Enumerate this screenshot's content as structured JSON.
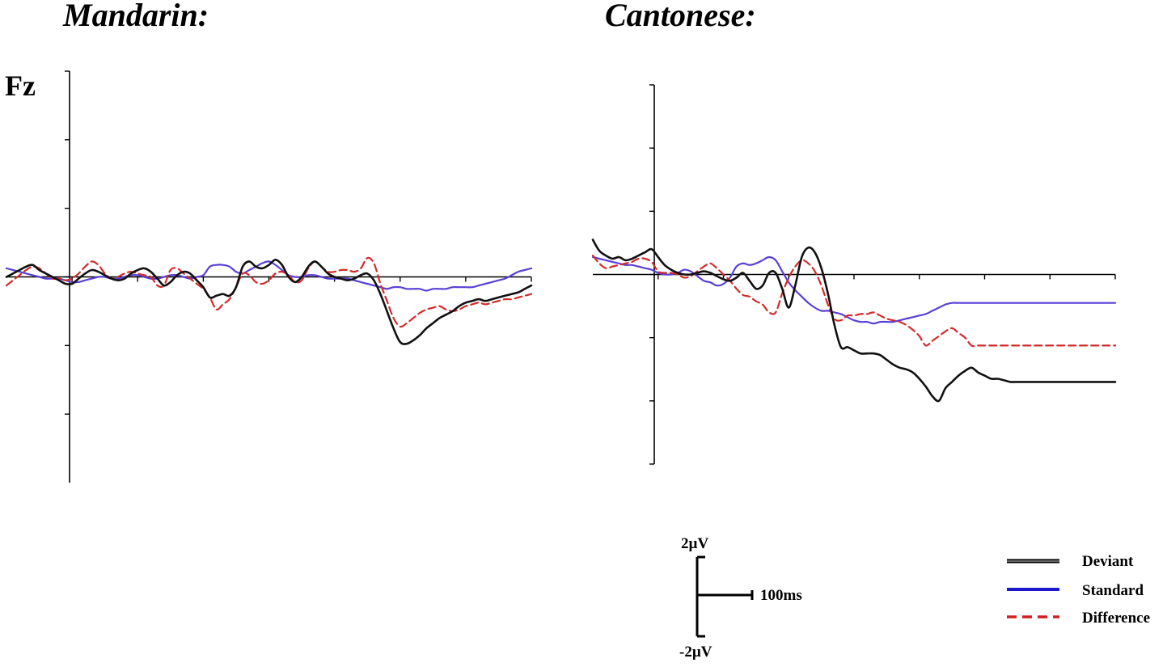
{
  "electrode_label": "Fz",
  "scale_bar": {
    "amplitude_top": "2µV",
    "amplitude_bottom": "-2µV",
    "time": "100ms"
  },
  "legend": [
    {
      "label": "Deviant",
      "color": "#000000",
      "style": "solid"
    },
    {
      "label": "Standard",
      "color": "#1a1acc",
      "style": "solid"
    },
    {
      "label": "Difference",
      "color": "#d02020",
      "style": "dashed"
    }
  ],
  "colors": {
    "deviant": "#111111",
    "standard": "#5a3fd6",
    "difference": "#d42a2a"
  },
  "chart_data": [
    {
      "type": "line",
      "title": "Mandarin:",
      "xlabel": "",
      "ylabel": "",
      "x_unit": "ms",
      "y_unit": "µV",
      "xlim": [
        -100,
        700
      ],
      "ylim": [
        -6,
        6
      ],
      "y_ticks": [
        -4,
        -2,
        0,
        2,
        4,
        6
      ],
      "x_ticks": [
        0,
        100,
        200,
        300,
        400,
        500,
        600,
        700
      ],
      "grid": false,
      "series": [
        {
          "name": "Deviant",
          "key": "deviant",
          "dashed": false,
          "x": [
            -100,
            -90,
            -80,
            -70,
            -60,
            -50,
            -40,
            -30,
            -20,
            -10,
            0,
            10,
            20,
            30,
            40,
            50,
            60,
            70,
            80,
            90,
            100,
            110,
            120,
            130,
            140,
            150,
            160,
            170,
            180,
            190,
            200,
            210,
            220,
            230,
            240,
            250,
            260,
            270,
            280,
            290,
            300,
            310,
            320,
            330,
            340,
            350,
            360,
            370,
            380,
            390,
            400,
            410,
            420,
            430,
            440,
            450,
            460,
            470,
            480,
            490,
            500,
            510,
            520,
            530,
            540,
            550,
            560,
            570,
            580,
            590,
            600,
            610,
            620,
            630,
            640,
            650,
            660,
            670,
            680,
            690,
            700
          ],
          "y": [
            0,
            0.1,
            0.2,
            0.3,
            0.35,
            0.2,
            0.1,
            0,
            -0.1,
            -0.2,
            -0.2,
            -0.05,
            0.1,
            0.2,
            0.15,
            0.05,
            -0.05,
            -0.1,
            -0.05,
            0.1,
            0.2,
            0.25,
            0.15,
            -0.05,
            -0.25,
            -0.15,
            0.05,
            0.15,
            0.1,
            -0.1,
            -0.3,
            -0.6,
            -0.55,
            -0.5,
            -0.55,
            -0.3,
            0.3,
            0.45,
            0.3,
            0.25,
            0.35,
            0.5,
            0.35,
            0,
            -0.15,
            0,
            0.3,
            0.45,
            0.3,
            0.1,
            0,
            -0.05,
            -0.1,
            -0.05,
            0.05,
            0.1,
            -0.1,
            -0.5,
            -1,
            -1.5,
            -1.9,
            -1.95,
            -1.85,
            -1.7,
            -1.5,
            -1.35,
            -1.2,
            -1.1,
            -1.0,
            -0.85,
            -0.75,
            -0.7,
            -0.65,
            -0.7,
            -0.65,
            -0.6,
            -0.55,
            -0.5,
            -0.45,
            -0.35,
            -0.25
          ]
        },
        {
          "name": "Standard",
          "key": "standard",
          "dashed": false,
          "x": [
            -100,
            -90,
            -80,
            -70,
            -60,
            -50,
            -40,
            -30,
            -20,
            -10,
            0,
            10,
            20,
            30,
            40,
            50,
            60,
            70,
            80,
            90,
            100,
            110,
            120,
            130,
            140,
            150,
            160,
            170,
            180,
            190,
            200,
            210,
            220,
            230,
            240,
            250,
            260,
            270,
            280,
            290,
            300,
            310,
            320,
            330,
            340,
            350,
            360,
            370,
            380,
            390,
            400,
            410,
            420,
            430,
            440,
            450,
            460,
            470,
            480,
            490,
            500,
            510,
            520,
            530,
            540,
            550,
            560,
            570,
            580,
            590,
            600,
            610,
            620,
            630,
            640,
            650,
            660,
            670,
            680,
            690,
            700
          ],
          "y": [
            0.25,
            0.2,
            0.15,
            0.1,
            0.05,
            0,
            -0.05,
            -0.05,
            -0.05,
            -0.1,
            -0.15,
            -0.15,
            -0.1,
            -0.05,
            0,
            0,
            -0.05,
            -0.05,
            0,
            0.05,
            0.05,
            0,
            -0.05,
            -0.05,
            0,
            0.05,
            0.05,
            0,
            -0.05,
            0,
            0.05,
            0.3,
            0.35,
            0.35,
            0.3,
            0.15,
            0.1,
            0.2,
            0.3,
            0.4,
            0.45,
            0.35,
            0.2,
            0.05,
            0,
            0,
            0.05,
            0.05,
            0,
            -0.05,
            -0.05,
            -0.05,
            -0.05,
            -0.1,
            -0.15,
            -0.2,
            -0.25,
            -0.3,
            -0.35,
            -0.3,
            -0.3,
            -0.35,
            -0.35,
            -0.35,
            -0.4,
            -0.35,
            -0.35,
            -0.35,
            -0.3,
            -0.3,
            -0.3,
            -0.3,
            -0.25,
            -0.2,
            -0.15,
            -0.1,
            -0.05,
            0.05,
            0.15,
            0.2,
            0.25
          ]
        },
        {
          "name": "Difference",
          "key": "difference",
          "dashed": true,
          "x": [
            -100,
            -90,
            -80,
            -70,
            -60,
            -50,
            -40,
            -30,
            -20,
            -10,
            0,
            10,
            20,
            30,
            40,
            50,
            60,
            70,
            80,
            90,
            100,
            110,
            120,
            130,
            140,
            150,
            160,
            170,
            180,
            190,
            200,
            210,
            220,
            230,
            240,
            250,
            260,
            270,
            280,
            290,
            300,
            310,
            320,
            330,
            340,
            350,
            360,
            370,
            380,
            390,
            400,
            410,
            420,
            430,
            440,
            450,
            460,
            470,
            480,
            490,
            500,
            510,
            520,
            530,
            540,
            550,
            560,
            570,
            580,
            590,
            600,
            610,
            620,
            630,
            640,
            650,
            660,
            670,
            680,
            690,
            700
          ],
          "y": [
            -0.25,
            -0.1,
            0.05,
            0.2,
            0.3,
            0.25,
            0.1,
            -0.05,
            -0.05,
            -0.1,
            -0.05,
            0.1,
            0.3,
            0.45,
            0.35,
            0.1,
            -0.05,
            0,
            0.1,
            0.15,
            0.1,
            0.05,
            0,
            -0.25,
            -0.25,
            0.2,
            0.25,
            0.1,
            -0.05,
            -0.2,
            -0.35,
            -0.6,
            -0.95,
            -0.8,
            -0.65,
            -0.3,
            0.1,
            0.05,
            -0.15,
            -0.2,
            -0.1,
            0.1,
            0.15,
            0.05,
            -0.15,
            -0.1,
            0.25,
            0.45,
            0.3,
            0.15,
            0.15,
            0.2,
            0.2,
            0.15,
            0.25,
            0.55,
            0.4,
            -0.2,
            -0.7,
            -1.2,
            -1.45,
            -1.35,
            -1.2,
            -1.05,
            -0.95,
            -0.9,
            -0.85,
            -0.95,
            -1.0,
            -0.95,
            -0.85,
            -0.8,
            -0.75,
            -0.8,
            -0.75,
            -0.7,
            -0.65,
            -0.65,
            -0.6,
            -0.55,
            -0.5
          ]
        }
      ]
    },
    {
      "type": "line",
      "title": "Cantonese:",
      "xlabel": "",
      "ylabel": "",
      "x_unit": "ms",
      "y_unit": "µV",
      "xlim": [
        -100,
        700
      ],
      "ylim": [
        -6,
        6
      ],
      "y_ticks": [
        -6,
        -4,
        -2,
        0,
        2,
        4,
        6
      ],
      "x_ticks": [
        0,
        100,
        200,
        300,
        400,
        500,
        600,
        700
      ],
      "grid": false,
      "series": [
        {
          "name": "Deviant",
          "key": "deviant",
          "dashed": false,
          "x": [
            -100,
            -90,
            -80,
            -70,
            -60,
            -50,
            -40,
            -30,
            -20,
            -10,
            0,
            10,
            20,
            30,
            40,
            50,
            60,
            70,
            80,
            90,
            100,
            110,
            120,
            130,
            140,
            150,
            160,
            170,
            180,
            190,
            200,
            210,
            220,
            230,
            240,
            250,
            260,
            270,
            280,
            290,
            300,
            310,
            320,
            330,
            340,
            350,
            360,
            370,
            380,
            390,
            400,
            410,
            420,
            430,
            440,
            450,
            460,
            470,
            480,
            490,
            500,
            510,
            520,
            530,
            540,
            550,
            560,
            570,
            580,
            590,
            600,
            610,
            620,
            630,
            640,
            650,
            660,
            670,
            680,
            690,
            700
          ],
          "y": [
            1.1,
            0.75,
            0.6,
            0.5,
            0.55,
            0.45,
            0.5,
            0.6,
            0.7,
            0.8,
            0.55,
            0.3,
            0.15,
            0.05,
            0,
            0,
            0.05,
            0.1,
            0.05,
            -0.05,
            -0.15,
            -0.2,
            -0.1,
            0.05,
            -0.2,
            -0.45,
            -0.35,
            0.05,
            0.05,
            -0.45,
            -1.05,
            -0.35,
            0.55,
            0.85,
            0.7,
            0.2,
            -0.6,
            -1.6,
            -2.3,
            -2.3,
            -2.4,
            -2.5,
            -2.5,
            -2.5,
            -2.55,
            -2.7,
            -2.85,
            -2.95,
            -3.0,
            -3.1,
            -3.3,
            -3.55,
            -3.85,
            -4.0,
            -3.6,
            -3.4,
            -3.2,
            -3.05,
            -2.95,
            -3.1,
            -3.2,
            -3.3,
            -3.3,
            -3.35,
            -3.4,
            -3.4,
            -3.4,
            -3.4,
            -3.4,
            -3.4,
            -3.4,
            -3.4,
            -3.4,
            -3.4,
            -3.4,
            -3.4,
            -3.4,
            -3.4,
            -3.4,
            -3.4,
            -3.4
          ]
        },
        {
          "name": "Standard",
          "key": "standard",
          "dashed": false,
          "x": [
            -100,
            -90,
            -80,
            -70,
            -60,
            -50,
            -40,
            -30,
            -20,
            -10,
            0,
            10,
            20,
            30,
            40,
            50,
            60,
            70,
            80,
            90,
            100,
            110,
            120,
            130,
            140,
            150,
            160,
            170,
            180,
            190,
            200,
            210,
            220,
            230,
            240,
            250,
            260,
            270,
            280,
            290,
            300,
            310,
            320,
            330,
            340,
            350,
            360,
            370,
            380,
            390,
            400,
            410,
            420,
            430,
            440,
            450,
            460,
            470,
            480,
            490,
            500,
            510,
            520,
            530,
            540,
            550,
            560,
            570,
            580,
            590,
            600,
            610,
            620,
            630,
            640,
            650,
            660,
            670,
            680,
            690,
            700
          ],
          "y": [
            0.55,
            0.5,
            0.45,
            0.4,
            0.35,
            0.3,
            0.3,
            0.25,
            0.2,
            0.15,
            0.05,
            0,
            0,
            0.05,
            0.15,
            0.1,
            -0.05,
            -0.2,
            -0.25,
            -0.35,
            -0.3,
            -0.1,
            0.25,
            0.35,
            0.3,
            0.35,
            0.45,
            0.55,
            0.45,
            0.1,
            -0.25,
            -0.5,
            -0.7,
            -0.9,
            -1.05,
            -1.15,
            -1.15,
            -1.2,
            -1.25,
            -1.35,
            -1.45,
            -1.5,
            -1.5,
            -1.55,
            -1.5,
            -1.5,
            -1.5,
            -1.45,
            -1.4,
            -1.35,
            -1.3,
            -1.25,
            -1.15,
            -1.05,
            -0.95,
            -0.9,
            -0.9,
            -0.9,
            -0.9,
            -0.9,
            -0.9,
            -0.9,
            -0.9,
            -0.9,
            -0.9,
            -0.9,
            -0.9,
            -0.9,
            -0.9,
            -0.9,
            -0.9,
            -0.9,
            -0.9,
            -0.9,
            -0.9,
            -0.9,
            -0.9,
            -0.9,
            -0.9,
            -0.9,
            -0.9
          ]
        },
        {
          "name": "Difference",
          "key": "difference",
          "dashed": true,
          "x": [
            -100,
            -90,
            -80,
            -70,
            -60,
            -50,
            -40,
            -30,
            -20,
            -10,
            0,
            10,
            20,
            30,
            40,
            50,
            60,
            70,
            80,
            90,
            100,
            110,
            120,
            130,
            140,
            150,
            160,
            170,
            180,
            190,
            200,
            210,
            220,
            230,
            240,
            250,
            260,
            270,
            280,
            290,
            300,
            310,
            320,
            330,
            340,
            350,
            360,
            370,
            380,
            390,
            400,
            410,
            420,
            430,
            440,
            450,
            460,
            470,
            480,
            490,
            500,
            510,
            520,
            530,
            540,
            550,
            560,
            570,
            580,
            590,
            600,
            610,
            620,
            630,
            640,
            650,
            660,
            670,
            680,
            690,
            700
          ],
          "y": [
            0.6,
            0.35,
            0.2,
            0.25,
            0.3,
            0.35,
            0.4,
            0.5,
            0.5,
            0.4,
            0.1,
            0.05,
            0.05,
            0,
            -0.1,
            -0.05,
            0.1,
            0.25,
            0.35,
            0.2,
            0,
            -0.2,
            -0.45,
            -0.65,
            -0.7,
            -0.85,
            -0.95,
            -1.2,
            -1.2,
            -0.6,
            -0.1,
            0.25,
            0.45,
            0.35,
            0.1,
            -0.35,
            -0.95,
            -1.4,
            -1.45,
            -1.3,
            -1.3,
            -1.25,
            -1.25,
            -1.2,
            -1.3,
            -1.4,
            -1.45,
            -1.5,
            -1.6,
            -1.75,
            -1.95,
            -2.25,
            -2.1,
            -1.95,
            -1.8,
            -1.7,
            -1.85,
            -2.0,
            -2.25,
            -2.25,
            -2.25,
            -2.25,
            -2.25,
            -2.25,
            -2.25,
            -2.25,
            -2.25,
            -2.25,
            -2.25,
            -2.25,
            -2.25,
            -2.25,
            -2.25,
            -2.25,
            -2.25,
            -2.25,
            -2.25,
            -2.25,
            -2.25,
            -2.25,
            -2.25
          ]
        }
      ]
    }
  ]
}
